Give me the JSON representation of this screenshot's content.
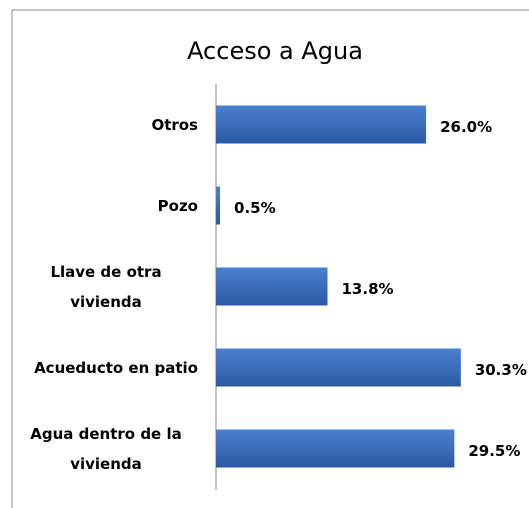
{
  "chart_data": {
    "type": "bar",
    "orientation": "horizontal",
    "title": "Acceso a Agua",
    "categories": [
      "Otros",
      "Pozo",
      "Llave de otra vivienda",
      "Acueducto en patio",
      "Agua dentro de la vivienda"
    ],
    "values": [
      26.0,
      0.5,
      13.8,
      30.3,
      29.5
    ],
    "value_labels": [
      "26.0%",
      "0.5%",
      "13.8%",
      "30.3%",
      "29.5%"
    ],
    "color": "#3a6fc0"
  }
}
